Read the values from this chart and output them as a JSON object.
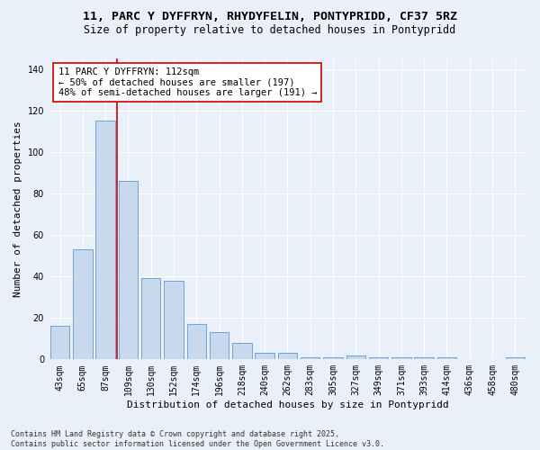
{
  "title_line1": "11, PARC Y DYFFRYN, RHYDYFELIN, PONTYPRIDD, CF37 5RZ",
  "title_line2": "Size of property relative to detached houses in Pontypridd",
  "xlabel": "Distribution of detached houses by size in Pontypridd",
  "ylabel": "Number of detached properties",
  "categories": [
    "43sqm",
    "65sqm",
    "87sqm",
    "109sqm",
    "130sqm",
    "152sqm",
    "174sqm",
    "196sqm",
    "218sqm",
    "240sqm",
    "262sqm",
    "283sqm",
    "305sqm",
    "327sqm",
    "349sqm",
    "371sqm",
    "393sqm",
    "414sqm",
    "436sqm",
    "458sqm",
    "480sqm"
  ],
  "values": [
    16,
    53,
    115,
    86,
    39,
    38,
    17,
    13,
    8,
    3,
    3,
    1,
    1,
    2,
    1,
    1,
    1,
    1,
    0,
    0,
    1
  ],
  "bar_color": "#c9d9ed",
  "bar_edge_color": "#5b9bd5",
  "vline_color": "#cc0000",
  "vline_x_index": 3,
  "annotation_text": "11 PARC Y DYFFRYN: 112sqm\n← 50% of detached houses are smaller (197)\n48% of semi-detached houses are larger (191) →",
  "annotation_box_color": "#ffffff",
  "annotation_box_edge": "#cc0000",
  "ylim": [
    0,
    145
  ],
  "yticks": [
    0,
    20,
    40,
    60,
    80,
    100,
    120,
    140
  ],
  "background_color": "#eaf0f8",
  "plot_bg_color": "#eaf0f8",
  "footer_text": "Contains HM Land Registry data © Crown copyright and database right 2025.\nContains public sector information licensed under the Open Government Licence v3.0.",
  "title_fontsize": 9.5,
  "subtitle_fontsize": 8.5,
  "axis_label_fontsize": 8,
  "tick_fontsize": 7,
  "annotation_fontsize": 7.5,
  "footer_fontsize": 6
}
